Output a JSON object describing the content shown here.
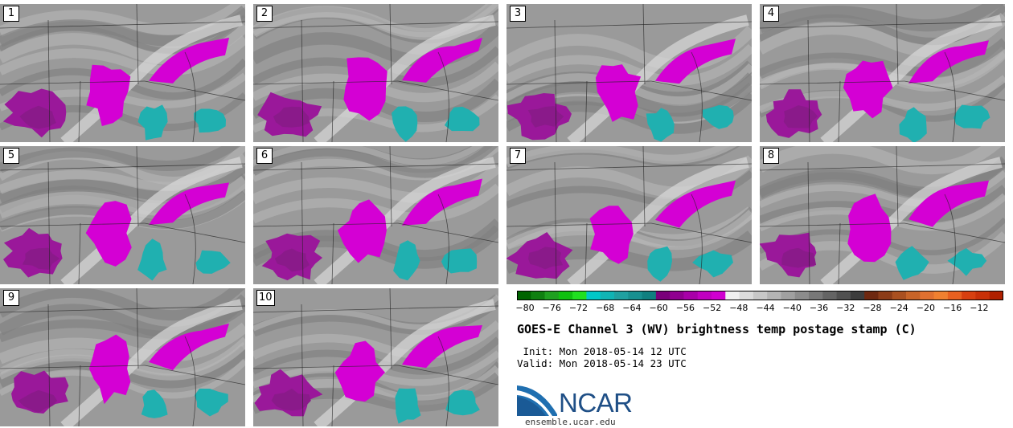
{
  "panels": [
    {
      "label": "1",
      "seed": 11
    },
    {
      "label": "2",
      "seed": 23
    },
    {
      "label": "3",
      "seed": 37
    },
    {
      "label": "4",
      "seed": 41
    },
    {
      "label": "5",
      "seed": 53
    },
    {
      "label": "6",
      "seed": 67
    },
    {
      "label": "7",
      "seed": 71
    },
    {
      "label": "8",
      "seed": 83
    },
    {
      "label": "9",
      "seed": 97
    },
    {
      "label": "10",
      "seed": 101
    }
  ],
  "colorbar": {
    "colors": [
      "#006400",
      "#0f8010",
      "#1fa020",
      "#10c010",
      "#20e020",
      "#00c8c8",
      "#10b4b4",
      "#20a0a0",
      "#189090",
      "#108080",
      "#7a007a",
      "#900090",
      "#a800a8",
      "#c000c0",
      "#d000d0",
      "#f0f0f0",
      "#dcdcdc",
      "#c8c8c8",
      "#b4b4b4",
      "#a0a0a0",
      "#8c8c8c",
      "#787878",
      "#646464",
      "#505050",
      "#3c3c3c",
      "#6e2810",
      "#8c3c18",
      "#aa5020",
      "#c86428",
      "#e07030",
      "#f08030",
      "#e86020",
      "#d84010",
      "#c83008",
      "#b02000"
    ],
    "ticks": [
      "−80",
      "−76",
      "−72",
      "−68",
      "−64",
      "−60",
      "−56",
      "−52",
      "−48",
      "−44",
      "−40",
      "−36",
      "−32",
      "−28",
      "−24",
      "−20",
      "−16",
      "−12"
    ],
    "min": -80,
    "max": -10
  },
  "title": "GOES-E Channel 3 (WV) brightness temp postage stamp (C)",
  "init_line": " Init: Mon 2018-05-14 12 UTC",
  "valid_line": "Valid: Mon 2018-05-14 23 UTC",
  "logo": {
    "text": "NCAR",
    "url": "ensemble.ucar.edu",
    "color": "#1f4f86"
  },
  "map_colors": {
    "gray_base": "#9a9a9a",
    "moist_light": "#d8d8d8",
    "magenta": "#d400d4",
    "dark_magenta": "#8a1a8a",
    "cyan": "#20b0b0",
    "border": "#222222"
  }
}
